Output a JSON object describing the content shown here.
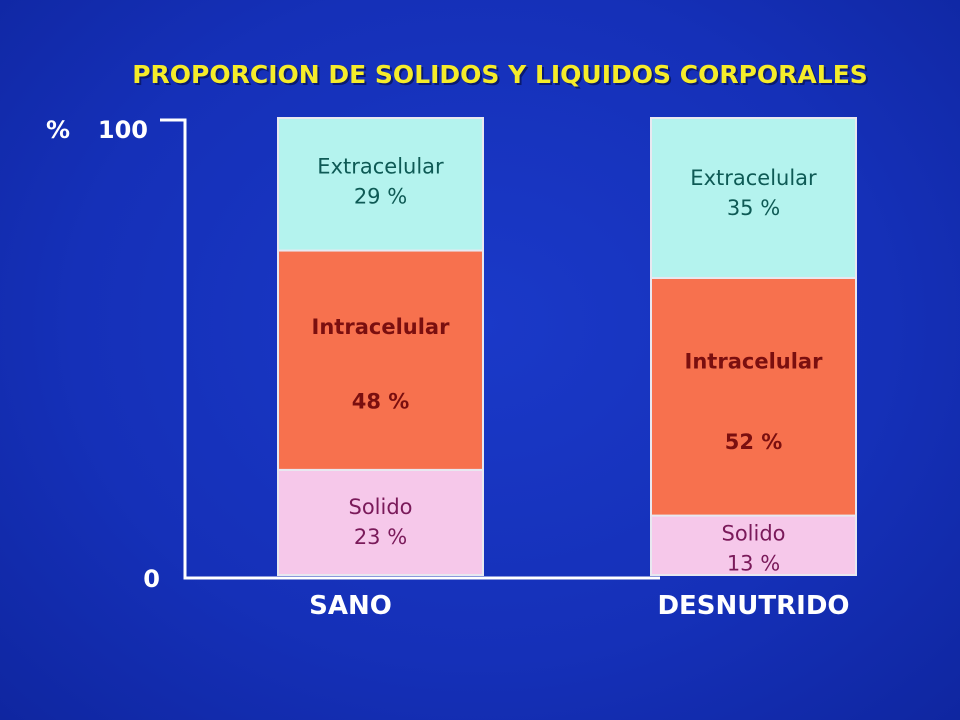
{
  "chart_data": {
    "type": "bar",
    "stacked": true,
    "title": "PROPORCION DE SOLIDOS Y LIQUIDOS CORPORALES",
    "ylabel": "%",
    "ylim": [
      0,
      100
    ],
    "yticks": [
      "0",
      "100"
    ],
    "categories": [
      "SANO",
      "DESNUTRIDO"
    ],
    "series": [
      {
        "name": "Solido",
        "values": [
          23,
          13
        ],
        "labels": [
          "23 %",
          "13 %"
        ],
        "color": "#f6c8ea",
        "text_color": "#7a1a5a"
      },
      {
        "name": "Intracelular",
        "values": [
          48,
          52
        ],
        "labels": [
          "48 %",
          "52 %"
        ],
        "color": "#f7714e",
        "text_color": "#7a0f0f"
      },
      {
        "name": "Extracelular",
        "values": [
          29,
          35
        ],
        "labels": [
          "29 %",
          "35 %"
        ],
        "color": "#b4f3ee",
        "text_color": "#0e5a55"
      }
    ],
    "grid": false,
    "legend": "none"
  },
  "colors": {
    "background": "#1530b8",
    "title": "#f5ec2a",
    "axis": "#ffffff",
    "category_label": "#ffffff"
  }
}
